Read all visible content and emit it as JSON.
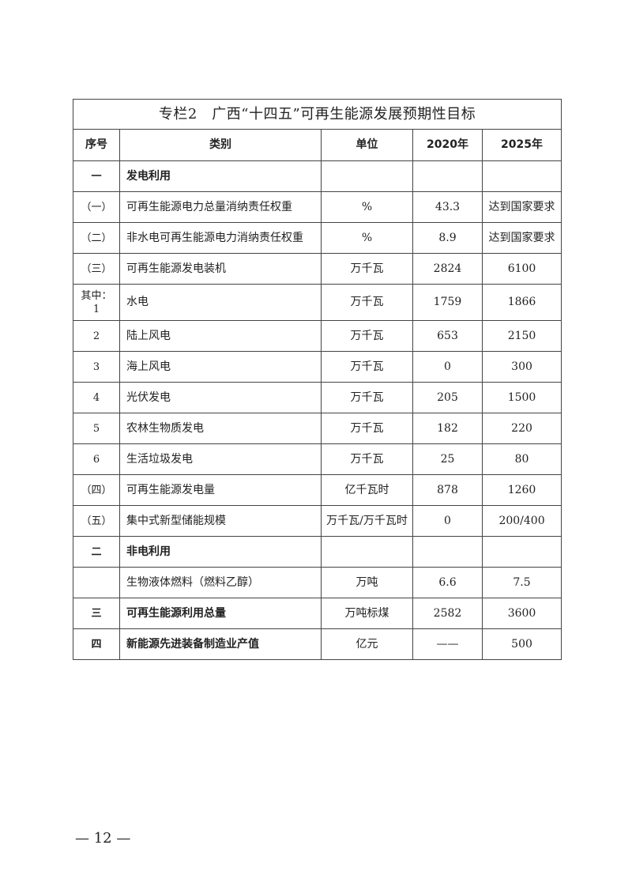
{
  "table": {
    "title": "专栏2　广西“十四五”可再生能源发展预期性目标",
    "headers": [
      "序号",
      "类别",
      "单位",
      "2020年",
      "2025年"
    ],
    "rows": [
      {
        "no": "一",
        "category": "发电利用",
        "unit": "",
        "y2020": "",
        "y2025": "",
        "bold": true
      },
      {
        "no": "（一）",
        "category": "可再生能源电力总量消纳责任权重",
        "unit": "%",
        "y2020": "43.3",
        "y2025": "达到国家要求"
      },
      {
        "no": "（二）",
        "category": "非水电可再生能源电力消纳责任权重",
        "unit": "%",
        "y2020": "8.9",
        "y2025": "达到国家要求"
      },
      {
        "no": "（三）",
        "category": "可再生能源发电装机",
        "unit": "万千瓦",
        "y2020": "2824",
        "y2025": "6100"
      },
      {
        "no": "其中：\n1",
        "category": "水电",
        "unit": "万千瓦",
        "y2020": "1759",
        "y2025": "1866",
        "tall": true
      },
      {
        "no": "2",
        "category": "陆上风电",
        "unit": "万千瓦",
        "y2020": "653",
        "y2025": "2150"
      },
      {
        "no": "3",
        "category": "海上风电",
        "unit": "万千瓦",
        "y2020": "0",
        "y2025": "300"
      },
      {
        "no": "4",
        "category": "光伏发电",
        "unit": "万千瓦",
        "y2020": "205",
        "y2025": "1500"
      },
      {
        "no": "5",
        "category": "农林生物质发电",
        "unit": "万千瓦",
        "y2020": "182",
        "y2025": "220"
      },
      {
        "no": "6",
        "category": "生活垃圾发电",
        "unit": "万千瓦",
        "y2020": "25",
        "y2025": "80"
      },
      {
        "no": "（四）",
        "category": "可再生能源发电量",
        "unit": "亿千瓦时",
        "y2020": "878",
        "y2025": "1260"
      },
      {
        "no": "（五）",
        "category": "集中式新型储能规模",
        "unit": "万千瓦/万千瓦时",
        "y2020": "0",
        "y2025": "200/400"
      },
      {
        "no": "二",
        "category": "非电利用",
        "unit": "",
        "y2020": "",
        "y2025": "",
        "bold": true
      },
      {
        "no": "",
        "category": "生物液体燃料（燃料乙醇）",
        "unit": "万吨",
        "y2020": "6.6",
        "y2025": "7.5"
      },
      {
        "no": "三",
        "category": "可再生能源利用总量",
        "unit": "万吨标煤",
        "y2020": "2582",
        "y2025": "3600",
        "bold": true
      },
      {
        "no": "四",
        "category": "新能源先进装备制造业产值",
        "unit": "亿元",
        "y2020": "——",
        "y2025": "500",
        "bold": true
      }
    ]
  },
  "footer": {
    "page_number": "— 12 —"
  }
}
